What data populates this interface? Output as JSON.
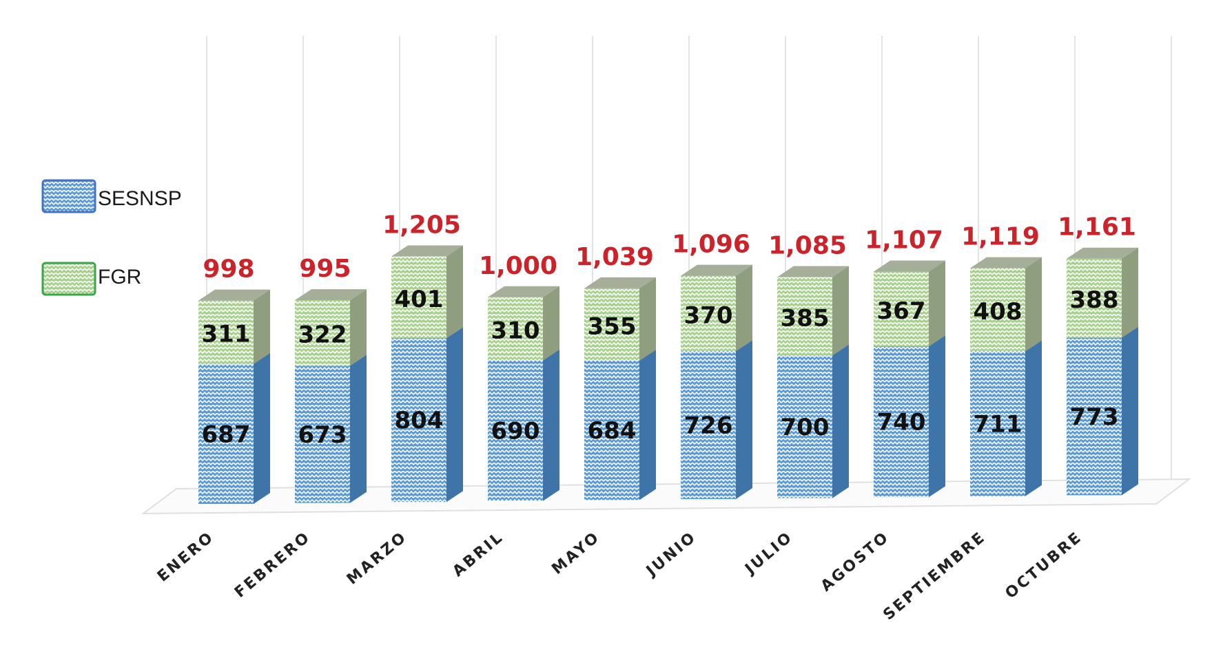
{
  "chart_data": {
    "type": "bar",
    "stacked": true,
    "categories": [
      "ENERO",
      "FEBRERO",
      "MARZO",
      "ABRIL",
      "MAYO",
      "JUNIO",
      "JULIO",
      "AGOSTO",
      "SEPTIEMBRE",
      "OCTUBRE"
    ],
    "series": [
      {
        "name": "SESNSP",
        "values": [
          687,
          673,
          804,
          690,
          684,
          726,
          700,
          740,
          711,
          773
        ],
        "color": "#5b9bd5"
      },
      {
        "name": "FGR",
        "values": [
          311,
          322,
          401,
          310,
          355,
          370,
          385,
          367,
          408,
          388
        ],
        "color": "#a9d18e"
      }
    ],
    "totals": [
      "998",
      "995",
      "1,205",
      "1,000",
      "1,039",
      "1,096",
      "1,085",
      "1,107",
      "1,119",
      "1,161"
    ],
    "ylim": [
      0,
      1250
    ],
    "grid": true,
    "legend": "left",
    "title": "",
    "xlabel": "",
    "ylabel": ""
  }
}
